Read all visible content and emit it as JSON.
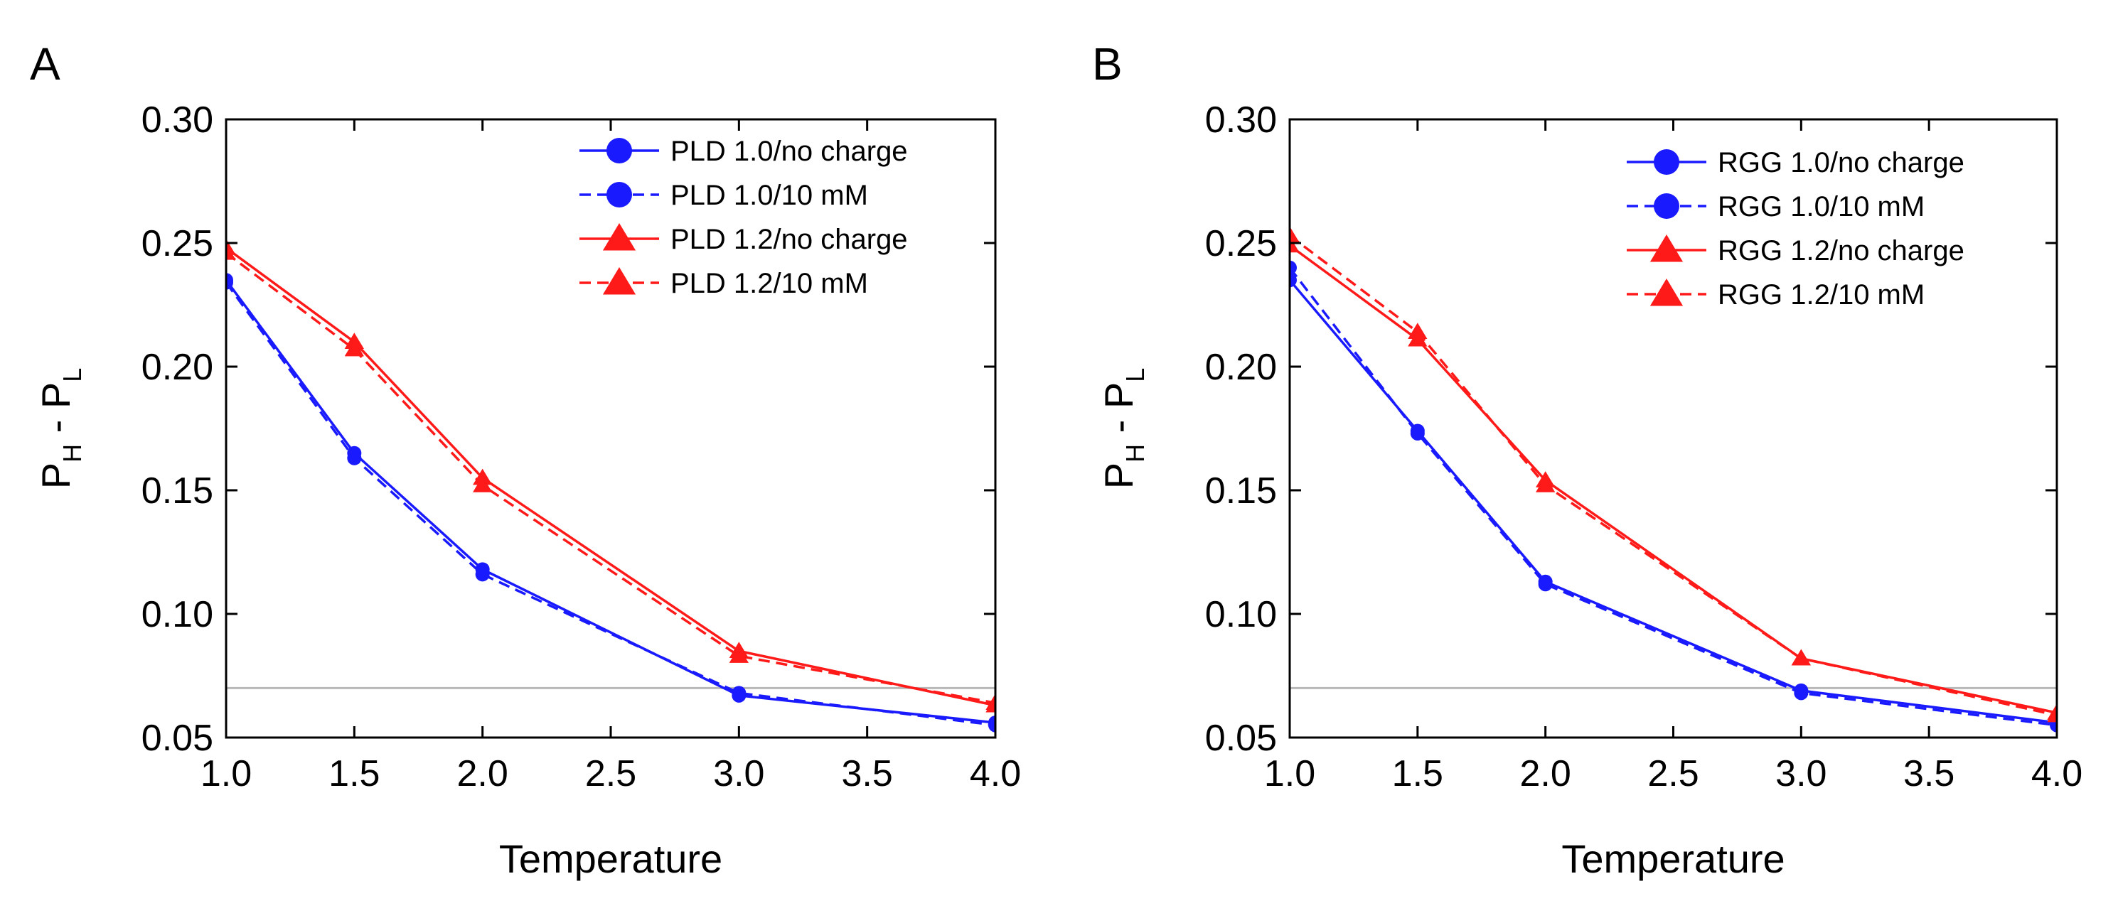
{
  "chart_data": [
    {
      "panel": "A",
      "type": "line",
      "xlabel": "Temperature",
      "ylabel": {
        "main": "P",
        "sub1": "H",
        "mid": " - P",
        "sub2": "L"
      },
      "xlim": [
        1.0,
        4.0
      ],
      "ylim": [
        0.05,
        0.3
      ],
      "xticks": [
        "1.0",
        "1.5",
        "2.0",
        "2.5",
        "3.0",
        "3.5",
        "4.0"
      ],
      "yticks": [
        "0.05",
        "0.10",
        "0.15",
        "0.20",
        "0.25",
        "0.30"
      ],
      "reference_line": 0.07,
      "legend_position": "top-right",
      "x": [
        1.0,
        1.5,
        2.0,
        3.0,
        4.0
      ],
      "series": [
        {
          "name": "PLD 1.0/no charge",
          "color": "#1a1aff",
          "dash": "solid",
          "marker": "circle",
          "values": [
            0.235,
            0.165,
            0.118,
            0.067,
            0.056
          ]
        },
        {
          "name": "PLD 1.0/10 mM",
          "color": "#1a1aff",
          "dash": "dashed",
          "marker": "circle",
          "values": [
            0.234,
            0.163,
            0.116,
            0.068,
            0.055
          ]
        },
        {
          "name": "PLD 1.2/no charge",
          "color": "#ff1a1a",
          "dash": "solid",
          "marker": "triangle",
          "values": [
            0.248,
            0.21,
            0.155,
            0.085,
            0.063
          ]
        },
        {
          "name": "PLD 1.2/10 mM",
          "color": "#ff1a1a",
          "dash": "dashed",
          "marker": "triangle",
          "values": [
            0.246,
            0.207,
            0.152,
            0.083,
            0.064
          ]
        }
      ]
    },
    {
      "panel": "B",
      "type": "line",
      "xlabel": "Temperature",
      "ylabel": {
        "main": "P",
        "sub1": "H",
        "mid": " - P",
        "sub2": "L"
      },
      "xlim": [
        1.0,
        4.0
      ],
      "ylim": [
        0.05,
        0.3
      ],
      "xticks": [
        "1.0",
        "1.5",
        "2.0",
        "2.5",
        "3.0",
        "3.5",
        "4.0"
      ],
      "yticks": [
        "0.05",
        "0.10",
        "0.15",
        "0.20",
        "0.25",
        "0.30"
      ],
      "reference_line": 0.07,
      "legend_position": "top-right",
      "x": [
        1.0,
        1.5,
        2.0,
        3.0,
        4.0
      ],
      "series": [
        {
          "name": "RGG 1.0/no charge",
          "color": "#1a1aff",
          "dash": "solid",
          "marker": "circle",
          "values": [
            0.235,
            0.174,
            0.113,
            0.069,
            0.056
          ]
        },
        {
          "name": "RGG 1.0/10 mM",
          "color": "#1a1aff",
          "dash": "dashed",
          "marker": "circle",
          "values": [
            0.24,
            0.173,
            0.112,
            0.068,
            0.055
          ]
        },
        {
          "name": "RGG 1.2/no charge",
          "color": "#ff1a1a",
          "dash": "solid",
          "marker": "triangle",
          "values": [
            0.249,
            0.211,
            0.154,
            0.082,
            0.06
          ]
        },
        {
          "name": "RGG 1.2/10 mM",
          "color": "#ff1a1a",
          "dash": "dashed",
          "marker": "triangle",
          "values": [
            0.253,
            0.214,
            0.152,
            0.082,
            0.059
          ]
        }
      ]
    }
  ]
}
